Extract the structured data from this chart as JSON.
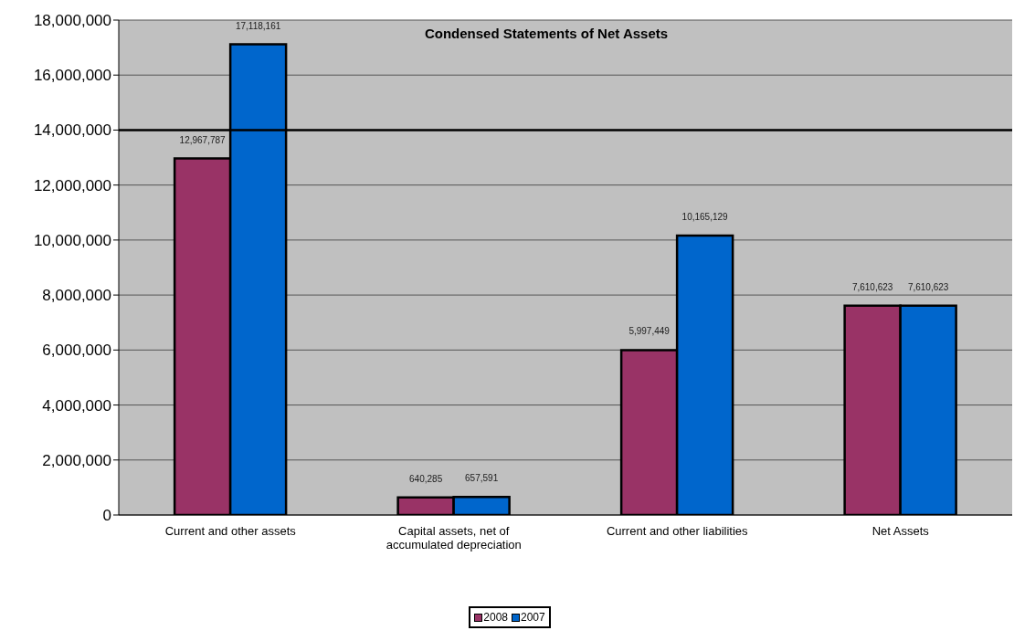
{
  "chart_data": {
    "type": "bar",
    "title": "Condensed Statements of Net Assets",
    "categories": [
      "Current and other assets",
      "Capital assets, net of accumulated depreciation",
      "Current and other liabilities",
      "Net Assets"
    ],
    "series": [
      {
        "name": "2008",
        "color": "#993366",
        "values": [
          12967787,
          640285,
          5997449,
          7610623
        ],
        "value_labels": [
          "12,967,787",
          "640,285",
          "5,997,449",
          "7,610,623"
        ]
      },
      {
        "name": "2007",
        "color": "#0066cc",
        "values": [
          17118161,
          657591,
          10165129,
          7610623
        ],
        "value_labels": [
          "17,118,161",
          "657,591",
          "10,165,129",
          "7,610,623"
        ]
      }
    ],
    "ylim": [
      0,
      18000000
    ],
    "yticks": [
      {
        "value": 0,
        "label": "0"
      },
      {
        "value": 2000000,
        "label": "2,000,000"
      },
      {
        "value": 4000000,
        "label": "4,000,000"
      },
      {
        "value": 6000000,
        "label": "6,000,000"
      },
      {
        "value": 8000000,
        "label": "8,000,000"
      },
      {
        "value": 10000000,
        "label": "10,000,000"
      },
      {
        "value": 12000000,
        "label": "12,000,000"
      },
      {
        "value": 14000000,
        "label": "14,000,000"
      },
      {
        "value": 16000000,
        "label": "16,000,000"
      },
      {
        "value": 18000000,
        "label": "18,000,000"
      }
    ],
    "ref_lines": [
      {
        "axis": "y",
        "value": 14000000,
        "color": "#000000"
      }
    ],
    "grid": "y",
    "legend": "bottom"
  }
}
